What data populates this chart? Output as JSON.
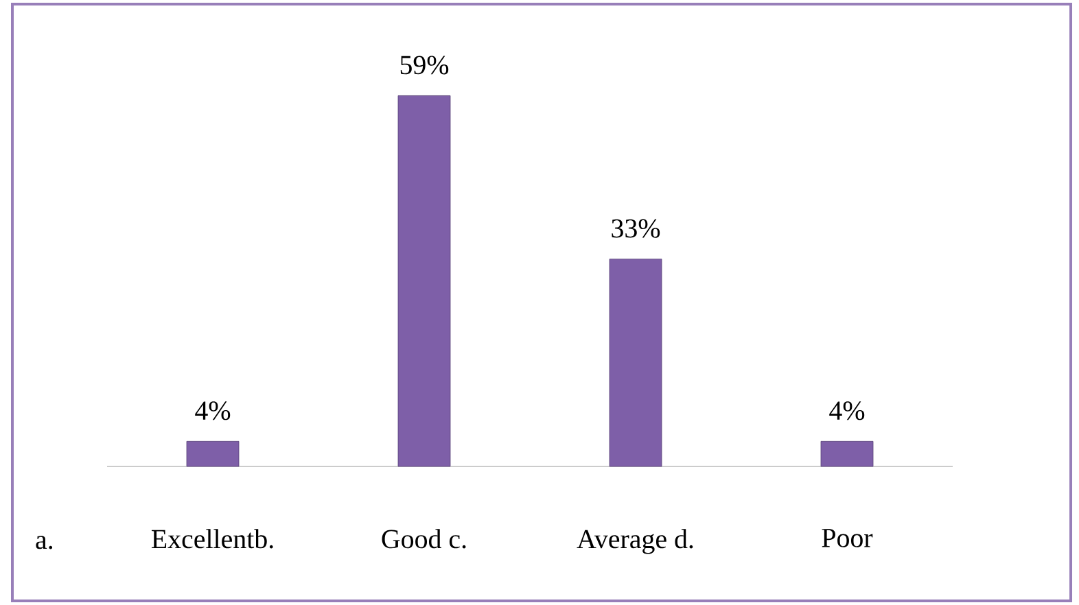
{
  "chart_data": {
    "type": "bar",
    "categories": [
      "Excellentb.",
      "Good c.",
      "Average d.",
      "Poor"
    ],
    "values": [
      4,
      59,
      33,
      4
    ],
    "value_labels": [
      "4%",
      "59%",
      "33%",
      "4%"
    ],
    "color": "#7e5fa8",
    "annotations": [
      "a."
    ]
  }
}
